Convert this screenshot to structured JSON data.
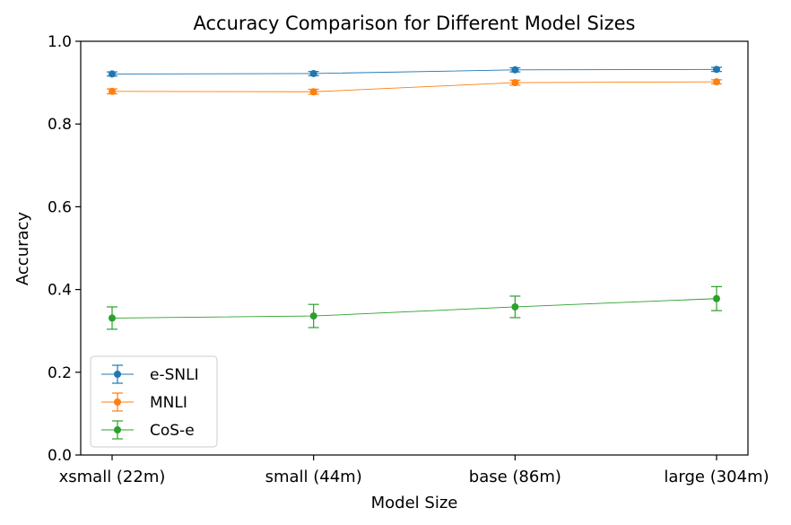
{
  "chart_data": {
    "type": "line",
    "title": "Accuracy Comparison for Different Model Sizes",
    "xlabel": "Model Size",
    "ylabel": "Accuracy",
    "categories": [
      "xsmall (22m)",
      "small (44m)",
      "base (86m)",
      "large (304m)"
    ],
    "ylim": [
      0.0,
      1.0
    ],
    "yticks": [
      "0.0",
      "0.2",
      "0.4",
      "0.6",
      "0.8",
      "1.0"
    ],
    "grid": false,
    "legend_position": "lower-left",
    "series": [
      {
        "name": "e-SNLI",
        "color": "#1f77b4",
        "values": [
          0.921,
          0.922,
          0.931,
          0.932
        ],
        "errors": [
          0.005,
          0.005,
          0.005,
          0.005
        ]
      },
      {
        "name": "MNLI",
        "color": "#ff7f0e",
        "values": [
          0.879,
          0.878,
          0.9,
          0.902
        ],
        "errors": [
          0.006,
          0.006,
          0.006,
          0.005
        ]
      },
      {
        "name": "CoS-e",
        "color": "#2ca02c",
        "values": [
          0.331,
          0.336,
          0.358,
          0.378
        ],
        "errors": [
          0.027,
          0.028,
          0.026,
          0.029
        ]
      }
    ]
  }
}
